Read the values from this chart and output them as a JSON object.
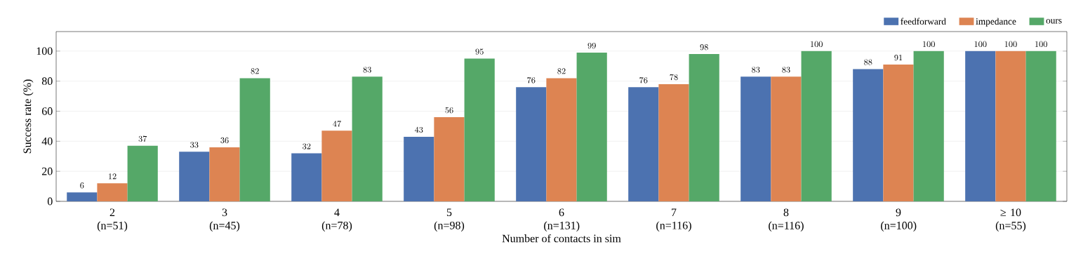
{
  "chart_data": {
    "type": "bar",
    "xlabel": "Number of contacts in sim",
    "ylabel": "Success rate (%)",
    "categories": [
      "2 (n=51)",
      "3 (n=45)",
      "4 (n=78)",
      "5 (n=98)",
      "6 (n=131)",
      "7 (n=116)",
      "8 (n=116)",
      "9 (n=100)",
      "≥ 10 (n=55)"
    ],
    "series": [
      {
        "name": "feedforward",
        "color": "#4c72b0",
        "values": [
          6,
          33,
          32,
          43,
          76,
          76,
          83,
          88,
          100
        ]
      },
      {
        "name": "impedance",
        "color": "#dd8452",
        "values": [
          12,
          36,
          47,
          56,
          82,
          78,
          83,
          91,
          100
        ]
      },
      {
        "name": "ours",
        "color": "#55a868",
        "values": [
          37,
          82,
          83,
          95,
          99,
          98,
          100,
          100,
          100
        ]
      }
    ],
    "ylim": [
      0,
      113
    ],
    "yticks": [
      0,
      20,
      40,
      60,
      80,
      100
    ],
    "grid": "y",
    "legend": "top right",
    "data_labels": true
  }
}
